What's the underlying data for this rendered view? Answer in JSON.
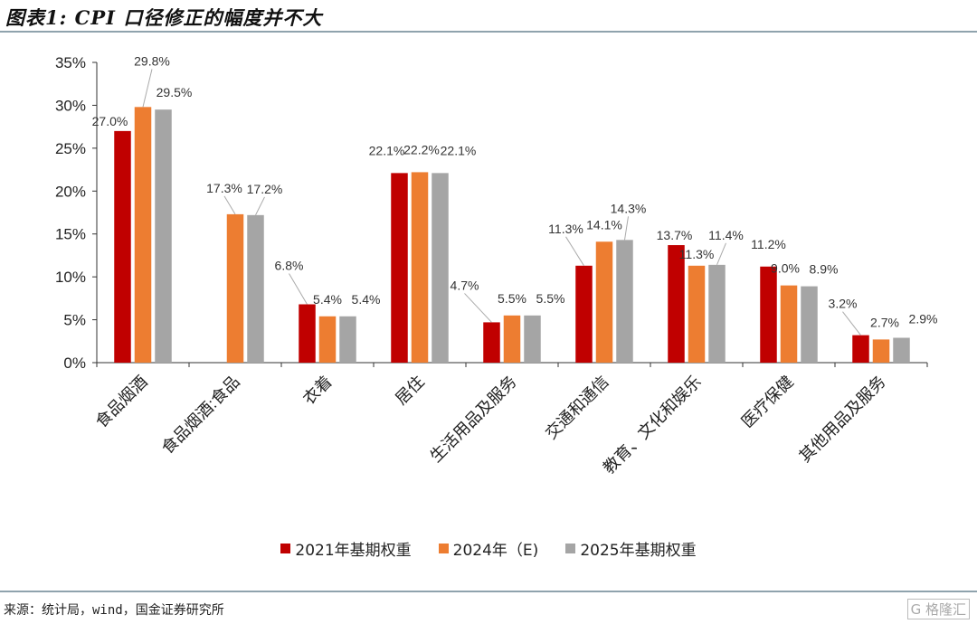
{
  "title": "图表1: CPI 口径修正的幅度并不大",
  "source": "来源：统计局，wind，国金证券研究所",
  "watermark": "格隆汇",
  "chart_data": {
    "type": "bar",
    "title": "",
    "xlabel": "",
    "ylabel": "",
    "ylim": [
      0,
      35
    ],
    "yticks": [
      "0%",
      "5%",
      "10%",
      "15%",
      "20%",
      "25%",
      "30%",
      "35%"
    ],
    "grid": false,
    "legend_position": "bottom",
    "categories": [
      "食品烟酒",
      "食品烟酒:食品",
      "衣着",
      "居住",
      "生活用品及服务",
      "交通和通信",
      "教育、文化和娱乐",
      "医疗保健",
      "其他用品及服务"
    ],
    "series": [
      {
        "name": "2021年基期权重",
        "color": "#c00000",
        "values": [
          27.0,
          null,
          6.8,
          22.1,
          4.7,
          11.3,
          13.7,
          11.2,
          3.2
        ]
      },
      {
        "name": "2024年（E)",
        "color": "#ed7d31",
        "values": [
          29.8,
          17.3,
          5.4,
          22.2,
          5.5,
          14.1,
          11.3,
          9.0,
          2.7
        ]
      },
      {
        "name": "2025年基期权重",
        "color": "#a5a5a5",
        "values": [
          29.5,
          17.2,
          5.4,
          22.1,
          5.5,
          14.3,
          11.4,
          8.9,
          2.9
        ]
      }
    ]
  }
}
